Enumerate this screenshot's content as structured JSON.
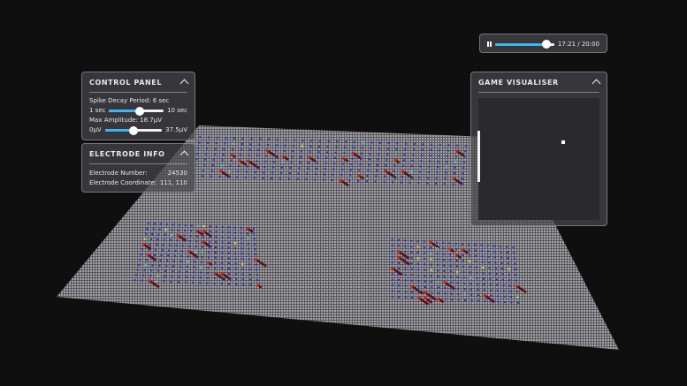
{
  "playback": {
    "icon": "pause-icon",
    "current": "17:21",
    "total": "20:00",
    "time_label": "17:21 / 20:00",
    "progress": 0.868
  },
  "control_panel": {
    "title": "CONTROL PANEL",
    "spike_decay": {
      "label": "Spike Decay Period: 6 sec",
      "min_label": "1 sec",
      "max_label": "10 sec",
      "min": 1,
      "max": 10,
      "value": 6
    },
    "max_amplitude": {
      "label": "Max Amplitude: 18.7μV",
      "min_label": "0μV",
      "max_label": "37.5μV",
      "min": 0,
      "max": 37.5,
      "value": 18.7
    }
  },
  "electrode_info": {
    "title": "ELECTRODE INFO",
    "rows": [
      {
        "label": "Electrode Number:",
        "value": "24530"
      },
      {
        "label": "Electrode Coordinate:",
        "value": "111, 110"
      }
    ]
  },
  "game_visualiser": {
    "title": "GAME VISUALISER"
  },
  "colors": {
    "accent": "#3ab6f0",
    "electrode": "#2a2ad0",
    "spike": "#d0201c",
    "plane": "#8a8a8e",
    "background": "#0f0f10"
  }
}
